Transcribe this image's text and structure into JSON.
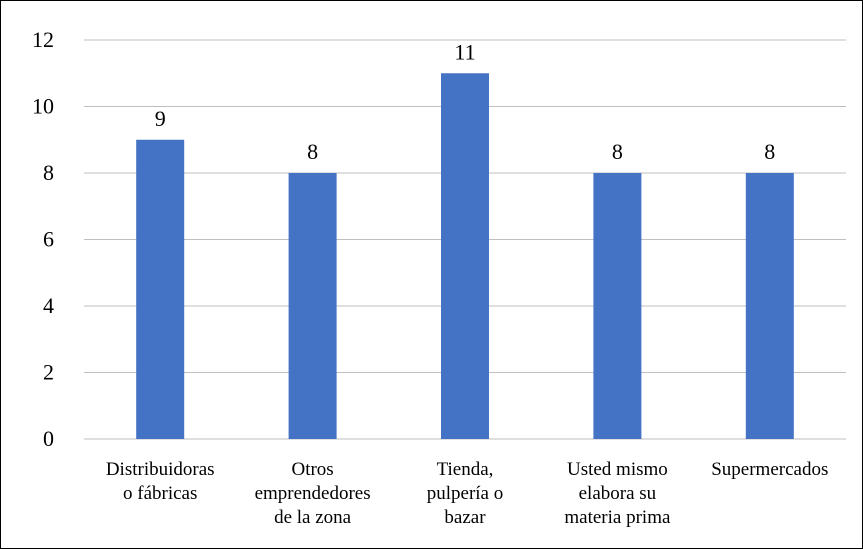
{
  "chart_data": {
    "type": "bar",
    "categories": [
      [
        "Distribuidoras",
        "o fábricas"
      ],
      [
        "Otros",
        "emprendedores",
        "de la zona"
      ],
      [
        "Tienda,",
        "pulpería o",
        "bazar"
      ],
      [
        "Usted mismo",
        "elabora su",
        "materia prima"
      ],
      [
        "Supermercados"
      ]
    ],
    "values": [
      9,
      8,
      11,
      8,
      8
    ],
    "data_labels": [
      "9",
      "8",
      "11",
      "8",
      "8"
    ],
    "ylim": [
      0,
      12
    ],
    "yticks": [
      0,
      2,
      4,
      6,
      8,
      10,
      12
    ],
    "title": "",
    "xlabel": "",
    "ylabel": "",
    "grid": true,
    "legend": "none",
    "colors": {
      "bar": "#4472C4",
      "grid": "#BFBFBF",
      "text": "#000000",
      "border": "#000000"
    }
  }
}
